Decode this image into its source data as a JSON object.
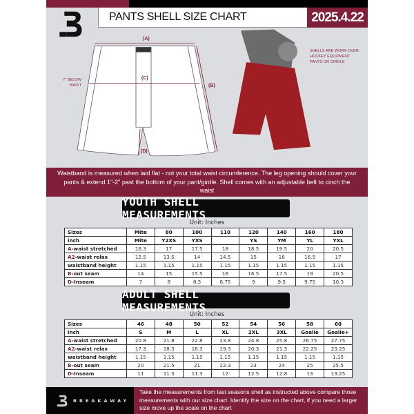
{
  "header": {
    "title": "PANTS SHELL SIZE CHART",
    "date": "2025.4.22"
  },
  "diagram": {
    "labels": {
      "a": "(A)",
      "b": "(B)",
      "c": "(C)",
      "d": "(D)"
    },
    "side_note": "7\" BELOW WAIST",
    "photo_note": "SHELLS ARE WORN OVER HOCKEY EQUIPMENT PANTS OR GIRDLE"
  },
  "info_band": "Waistband is measured when laid flat - not your total waist circumference. The leg opening should cover your pants & extend 1\"-2\" past the bottom of your pant/girdle. Shell comes with an adjustable belt to cinch the waist",
  "youth": {
    "title": "YOUTH SHELL MEASUREMENTS",
    "unit": "Unit: Inches",
    "rows": [
      {
        "key": "",
        "label": "Sizes",
        "values": [
          "Mite",
          "80",
          "100",
          "110",
          "120",
          "140",
          "160",
          "180"
        ]
      },
      {
        "key": "",
        "label": "inch",
        "values": [
          "Mite",
          "Y2XS",
          "YXS",
          "",
          "YS",
          "YM",
          "YL",
          "YXL"
        ]
      },
      {
        "key": "A",
        "label": "-waist stretched",
        "values": [
          "16.3",
          "17",
          "17.5",
          "18",
          "18.5",
          "19.5",
          "20",
          "20.5"
        ]
      },
      {
        "key": "A2",
        "label": "-waist relax",
        "values": [
          "12.5",
          "13.5",
          "14",
          "14.5",
          "15",
          "16",
          "16.5",
          "17"
        ]
      },
      {
        "key": "",
        "label": "waistband height",
        "values": [
          "1.15",
          "1.15",
          "1.15",
          "1.15",
          "1.15",
          "1.15",
          "1.15",
          "1.15"
        ]
      },
      {
        "key": "B",
        "label": "-out seam",
        "values": [
          "14",
          "15",
          "15.5",
          "16",
          "16.5",
          "17.5",
          "19",
          "20.5"
        ]
      },
      {
        "key": "D",
        "label": "-Inseam",
        "values": [
          "7",
          "8",
          "8.5",
          "8.75",
          "9",
          "9.5",
          "9.75",
          "10.3"
        ]
      }
    ]
  },
  "adult": {
    "title": "ADULT SHELL MEASUREMENTS",
    "unit": "Unit: Inches",
    "rows": [
      {
        "key": "",
        "label": "Sizes",
        "values": [
          "46",
          "48",
          "50",
          "52",
          "54",
          "56",
          "58",
          "60"
        ]
      },
      {
        "key": "",
        "label": "inch",
        "values": [
          "S",
          "M",
          "L",
          "XL",
          "2XL",
          "3XL",
          "Goalie",
          "Goalie+"
        ]
      },
      {
        "key": "A",
        "label": "-waist stretched",
        "values": [
          "20.8",
          "21.8",
          "22.8",
          "23.8",
          "24.8",
          "25.8",
          "26.75",
          "27.75"
        ]
      },
      {
        "key": "A2",
        "label": "-waist relax",
        "values": [
          "17.3",
          "18.3",
          "18.3",
          "19.3",
          "20.3",
          "21.3",
          "22.25",
          "23.25"
        ]
      },
      {
        "key": "",
        "label": "waistband height",
        "values": [
          "1.15",
          "1.15",
          "1.15",
          "1.15",
          "1.15",
          "1.15",
          "1.15",
          "1.15"
        ]
      },
      {
        "key": "B",
        "label": "-out seam",
        "values": [
          "20",
          "21.5",
          "21",
          "22.3",
          "23",
          "24",
          "25",
          "25.5"
        ]
      },
      {
        "key": "D",
        "label": "-Inseam",
        "values": [
          "11",
          "11.3",
          "11.3",
          "12",
          "12.5",
          "12.8",
          "13",
          "13.25"
        ]
      }
    ]
  },
  "footer": {
    "brand": "BREAKAWAY",
    "text": "Take the measurements from last seasons shell as instructed above compare those measurements  with our size chart. Identify the size on the chart, if you need a larger size move up the scale on the chart"
  },
  "colors": {
    "brand": "#7f1f3a",
    "dark": "#0a0a0a",
    "panel": "#dcdde0"
  }
}
